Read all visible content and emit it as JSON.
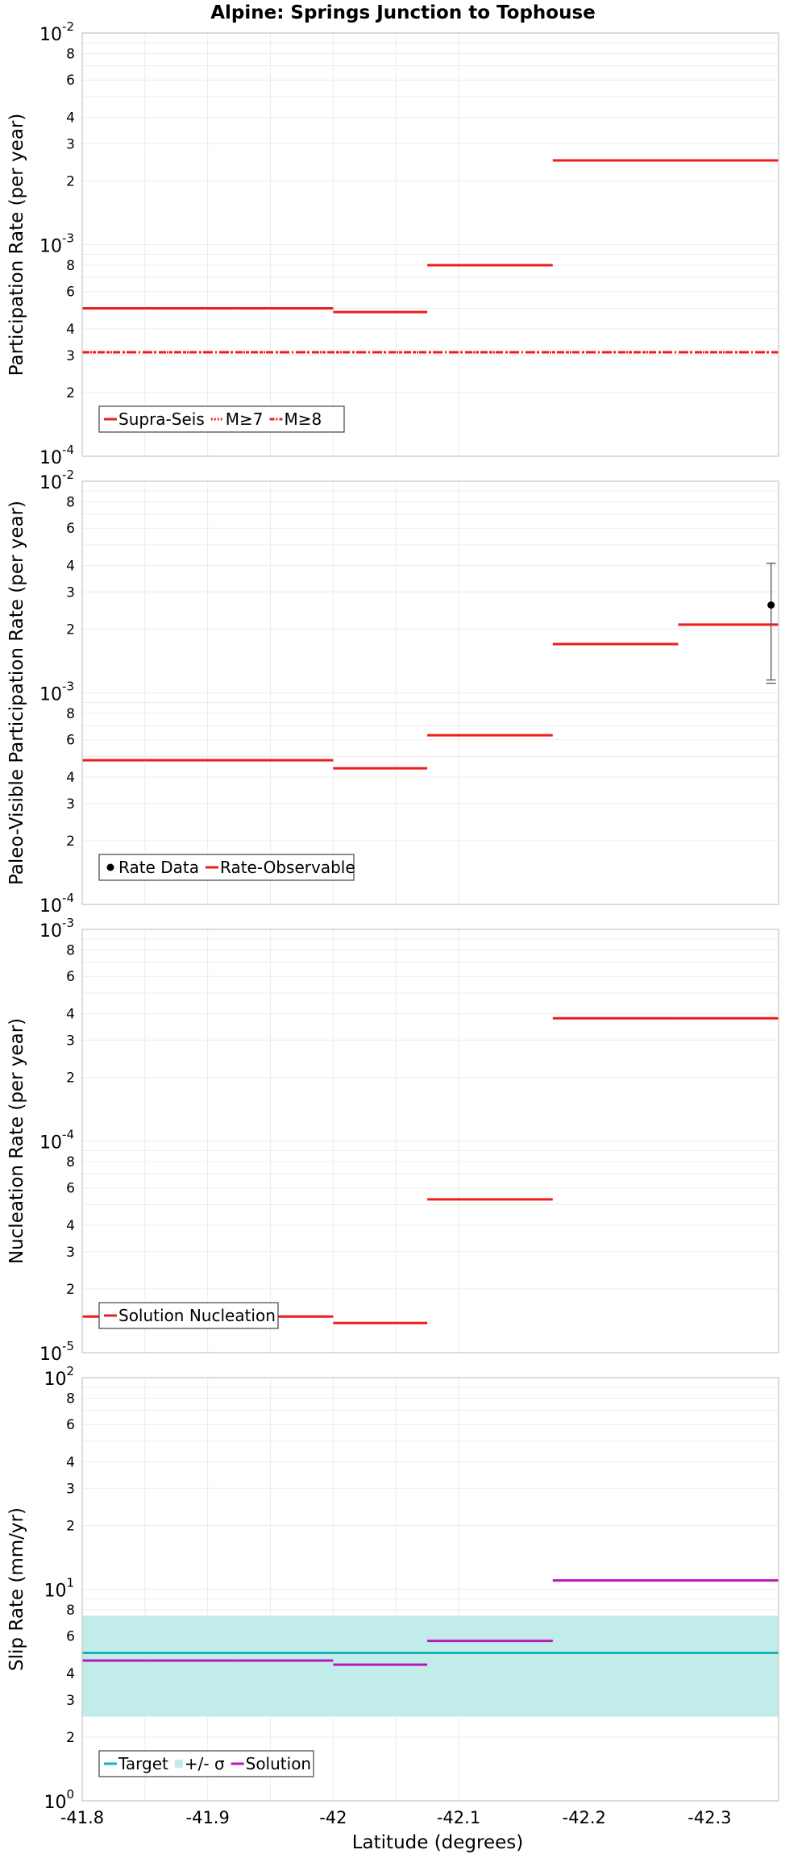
{
  "title": "Alpine: Springs Junction to Tophouse",
  "xlabel": "Latitude (degrees)",
  "x_ticks": [
    "-41.8",
    "-41.9",
    "-42",
    "-42.1",
    "-42.2",
    "-42.3"
  ],
  "colors": {
    "red": "#ee1c1c",
    "cyan": "#19b3b3",
    "band": "#c2ecea",
    "magenta": "#bb16bb",
    "black": "#000000",
    "grid": "#ececec",
    "frame": "#c8c8c8"
  },
  "chart_data": [
    {
      "type": "line",
      "ylabel": "Participation Rate (per year)",
      "yscale": "log",
      "ylim": [
        0.0001,
        0.01
      ],
      "xlim": [
        -41.8,
        -42.355
      ],
      "decade_labels": [
        {
          "base": "10",
          "exp": "-4"
        },
        {
          "base": "10",
          "exp": "-3"
        },
        {
          "base": "10",
          "exp": "-2"
        }
      ],
      "series": [
        {
          "name": "Supra-Seis",
          "style": "solid",
          "color": "#ee1c1c",
          "segments": [
            [
              -41.8,
              -41.85,
              0.0005
            ],
            [
              -41.85,
              -41.925,
              0.0005
            ],
            [
              -41.925,
              -42.0,
              0.0005
            ],
            [
              -42.0,
              -42.075,
              0.00048
            ],
            [
              -42.075,
              -42.175,
              0.0008
            ],
            [
              -42.175,
              -42.275,
              0.0025
            ],
            [
              -42.275,
              -42.355,
              0.0025
            ]
          ]
        },
        {
          "name": "M≥7",
          "style": "dotted",
          "color": "#ee1c1c",
          "segments": [
            [
              -41.8,
              -42.355,
              0.00031
            ]
          ]
        },
        {
          "name": "M≥8",
          "style": "dashdot",
          "color": "#ee1c1c",
          "segments": [
            [
              -41.8,
              -42.355,
              0.00031
            ]
          ]
        }
      ],
      "legend": [
        {
          "label": "Supra-Seis",
          "style": "solid",
          "color": "#ee1c1c"
        },
        {
          "label": "M≥7",
          "style": "dotted",
          "color": "#ee1c1c"
        },
        {
          "label": "M≥8",
          "style": "dashdot",
          "color": "#ee1c1c"
        }
      ]
    },
    {
      "type": "line",
      "ylabel": "Paleo-Visible Participation Rate (per year)",
      "yscale": "log",
      "ylim": [
        0.0001,
        0.01
      ],
      "xlim": [
        -41.8,
        -42.355
      ],
      "decade_labels": [
        {
          "base": "10",
          "exp": "-4"
        },
        {
          "base": "10",
          "exp": "-3"
        },
        {
          "base": "10",
          "exp": "-2"
        }
      ],
      "series": [
        {
          "name": "Rate-Observable",
          "style": "solid",
          "color": "#ee1c1c",
          "segments": [
            [
              -41.8,
              -41.85,
              0.00048
            ],
            [
              -41.85,
              -41.925,
              0.00048
            ],
            [
              -41.925,
              -42.0,
              0.00048
            ],
            [
              -42.0,
              -42.075,
              0.00044
            ],
            [
              -42.075,
              -42.175,
              0.00063
            ],
            [
              -42.175,
              -42.275,
              0.0017
            ],
            [
              -42.275,
              -42.355,
              0.0021
            ]
          ]
        }
      ],
      "points": [
        {
          "x": -42.349,
          "y": 0.0026,
          "ylow": 0.00115,
          "yhigh": 0.0041
        }
      ],
      "legend": [
        {
          "label": "Rate Data",
          "style": "dot",
          "color": "#000000"
        },
        {
          "label": "Rate-Observable",
          "style": "solid",
          "color": "#ee1c1c"
        }
      ]
    },
    {
      "type": "line",
      "ylabel": "Nucleation Rate (per year)",
      "yscale": "log",
      "ylim": [
        1e-05,
        0.001
      ],
      "xlim": [
        -41.8,
        -42.355
      ],
      "decade_labels": [
        {
          "base": "10",
          "exp": "-5"
        },
        {
          "base": "10",
          "exp": "-4"
        },
        {
          "base": "10",
          "exp": "-3"
        }
      ],
      "series": [
        {
          "name": "Solution Nucleation",
          "style": "solid",
          "color": "#ee1c1c",
          "segments": [
            [
              -41.8,
              -41.85,
              1.48e-05
            ],
            [
              -41.85,
              -41.925,
              1.48e-05
            ],
            [
              -41.925,
              -42.0,
              1.48e-05
            ],
            [
              -42.0,
              -42.075,
              1.38e-05
            ],
            [
              -42.075,
              -42.175,
              5.3e-05
            ],
            [
              -42.175,
              -42.275,
              0.00038
            ],
            [
              -42.275,
              -42.355,
              0.00038
            ]
          ]
        }
      ],
      "legend": [
        {
          "label": "Solution Nucleation",
          "style": "solid",
          "color": "#ee1c1c"
        }
      ]
    },
    {
      "type": "line",
      "ylabel": "Slip Rate (mm/yr)",
      "yscale": "log",
      "ylim": [
        1,
        100
      ],
      "xlim": [
        -41.8,
        -42.355
      ],
      "decade_labels": [
        {
          "base": "10",
          "exp": "0"
        },
        {
          "base": "10",
          "exp": "1"
        },
        {
          "base": "10",
          "exp": "2"
        }
      ],
      "band": {
        "name": "+/- σ",
        "x": [
          -41.8,
          -42.355
        ],
        "ylow": 2.5,
        "yhigh": 7.5,
        "color": "#c2ecea"
      },
      "series": [
        {
          "name": "Target",
          "style": "solid",
          "color": "#19b3b3",
          "segments": [
            [
              -41.8,
              -42.355,
              5.0
            ]
          ]
        },
        {
          "name": "Solution",
          "style": "solid",
          "color": "#bb16bb",
          "segments": [
            [
              -41.8,
              -41.85,
              4.6
            ],
            [
              -41.85,
              -41.925,
              4.6
            ],
            [
              -41.925,
              -42.0,
              4.6
            ],
            [
              -42.0,
              -42.075,
              4.4
            ],
            [
              -42.075,
              -42.175,
              5.7
            ],
            [
              -42.175,
              -42.275,
              11.0
            ],
            [
              -42.275,
              -42.355,
              11.0
            ]
          ]
        }
      ],
      "legend": [
        {
          "label": "Target",
          "style": "solid",
          "color": "#19b3b3"
        },
        {
          "label": "+/- σ",
          "style": "box",
          "color": "#c2ecea"
        },
        {
          "label": "Solution",
          "style": "solid",
          "color": "#bb16bb"
        }
      ]
    }
  ]
}
